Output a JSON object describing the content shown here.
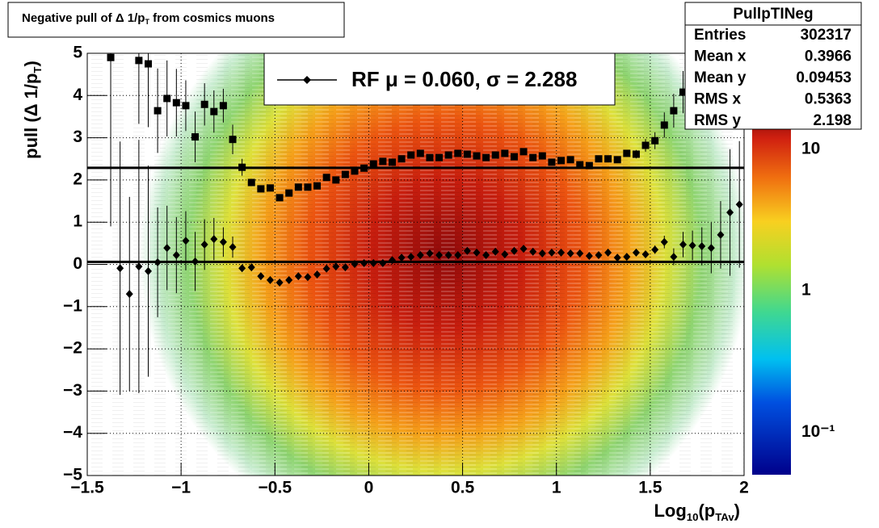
{
  "chart_data": {
    "type": "profile2d",
    "title": [
      "Negative pull of Δ 1/p",
      "T",
      " from cosmics muons"
    ],
    "ylabel": [
      "pull (Δ 1/p",
      "T",
      ")"
    ],
    "xlabel": [
      "Log",
      "10",
      "(p",
      "TAv",
      ")"
    ],
    "xlim": [
      -1.5,
      2
    ],
    "xticks": [
      {
        "value": -1.5,
        "label": "−1.5"
      },
      {
        "value": -1,
        "label": "−1"
      },
      {
        "value": -0.5,
        "label": "−0.5"
      },
      0,
      0.5,
      1,
      1.5,
      2
    ],
    "ylim": [
      -5,
      5
    ],
    "yticks": [
      {
        "value": -5,
        "label": "−5"
      },
      {
        "value": -4,
        "label": "−4"
      },
      {
        "value": -3,
        "label": "−3"
      },
      {
        "value": -2,
        "label": "−2"
      },
      {
        "value": -1,
        "label": "−1"
      },
      0,
      1,
      2,
      3,
      4,
      5
    ],
    "grid": true,
    "zlim": [
      0.05,
      18
    ],
    "zlog": true,
    "zticks": [
      {
        "value": 0.1,
        "label": "10⁻¹"
      },
      1,
      10
    ],
    "series": [
      {
        "name": "RF μ =  0.060, σ =   2.288",
        "marker": "diamond",
        "color": "#000000",
        "x": [
          -1.325,
          -1.275,
          -1.225,
          -1.175,
          -1.125,
          -1.075,
          -1.025,
          -0.975,
          -0.925,
          -0.875,
          -0.825,
          -0.775,
          -0.725,
          -0.675,
          -0.625,
          -0.575,
          -0.525,
          -0.475,
          -0.425,
          -0.375,
          -0.325,
          -0.275,
          -0.225,
          -0.175,
          -0.125,
          -0.075,
          -0.025,
          0.025,
          0.075,
          0.125,
          0.175,
          0.225,
          0.275,
          0.325,
          0.375,
          0.425,
          0.475,
          0.525,
          0.575,
          0.625,
          0.675,
          0.725,
          0.775,
          0.825,
          0.875,
          0.925,
          0.975,
          1.025,
          1.075,
          1.125,
          1.175,
          1.225,
          1.275,
          1.325,
          1.375,
          1.425,
          1.475,
          1.525,
          1.575,
          1.625,
          1.675,
          1.725,
          1.775,
          1.825,
          1.875,
          1.925,
          1.975
        ],
        "values": [
          -0.09,
          -0.7,
          -0.05,
          -0.16,
          0.05,
          0.39,
          0.22,
          0.56,
          0.07,
          0.47,
          0.6,
          0.53,
          0.41,
          -0.09,
          -0.07,
          -0.28,
          -0.37,
          -0.43,
          -0.37,
          -0.28,
          -0.3,
          -0.24,
          -0.1,
          -0.05,
          -0.07,
          0.01,
          0.03,
          0.03,
          0.03,
          0.1,
          0.16,
          0.18,
          0.22,
          0.26,
          0.22,
          0.22,
          0.22,
          0.32,
          0.28,
          0.22,
          0.3,
          0.24,
          0.32,
          0.37,
          0.3,
          0.26,
          0.28,
          0.28,
          0.26,
          0.26,
          0.2,
          0.22,
          0.28,
          0.16,
          0.18,
          0.28,
          0.24,
          0.35,
          0.53,
          0.18,
          0.47,
          0.45,
          0.43,
          0.39,
          0.7,
          1.23,
          1.42
        ],
        "errors": [
          3,
          2.3,
          3,
          2.5,
          1.3,
          1.0,
          0.9,
          0.7,
          0.7,
          0.6,
          0.5,
          0.35,
          0.25,
          0.08,
          0.06,
          0.05,
          0.03,
          0.03,
          0.03,
          0.03,
          0.03,
          0.03,
          0.03,
          0.03,
          0.03,
          0.03,
          0.03,
          0.03,
          0.03,
          0.03,
          0.03,
          0.03,
          0.03,
          0.03,
          0.03,
          0.03,
          0.03,
          0.03,
          0.03,
          0.03,
          0.03,
          0.03,
          0.03,
          0.03,
          0.03,
          0.03,
          0.03,
          0.03,
          0.03,
          0.03,
          0.03,
          0.03,
          0.03,
          0.05,
          0.05,
          0.06,
          0.07,
          0.1,
          0.15,
          0.2,
          0.3,
          0.35,
          0.45,
          0.6,
          0.8,
          1.5,
          1.5
        ]
      },
      {
        "marker": "square",
        "color": "#000000",
        "x": [
          -1.375,
          -1.225,
          -1.175,
          -1.125,
          -1.075,
          -1.025,
          -0.975,
          -0.925,
          -0.875,
          -0.825,
          -0.775,
          -0.725,
          -0.675,
          -0.625,
          -0.575,
          -0.525,
          -0.475,
          -0.425,
          -0.375,
          -0.325,
          -0.275,
          -0.225,
          -0.175,
          -0.125,
          -0.075,
          -0.025,
          0.025,
          0.075,
          0.125,
          0.175,
          0.225,
          0.275,
          0.325,
          0.375,
          0.425,
          0.475,
          0.525,
          0.575,
          0.625,
          0.675,
          0.725,
          0.775,
          0.825,
          0.875,
          0.925,
          0.975,
          1.025,
          1.075,
          1.125,
          1.175,
          1.225,
          1.275,
          1.325,
          1.375,
          1.425,
          1.475,
          1.525,
          1.575,
          1.625,
          1.675,
          1.725
        ],
        "values": [
          4.9,
          4.83,
          4.75,
          3.64,
          3.93,
          3.83,
          3.76,
          3.02,
          3.79,
          3.62,
          3.76,
          2.96,
          2.3,
          1.94,
          1.79,
          1.81,
          1.58,
          1.69,
          1.83,
          1.83,
          1.86,
          2.06,
          2.0,
          2.13,
          2.21,
          2.28,
          2.38,
          2.44,
          2.42,
          2.5,
          2.59,
          2.63,
          2.53,
          2.53,
          2.59,
          2.63,
          2.61,
          2.57,
          2.53,
          2.59,
          2.63,
          2.55,
          2.67,
          2.53,
          2.57,
          2.42,
          2.46,
          2.48,
          2.36,
          2.34,
          2.5,
          2.5,
          2.48,
          2.63,
          2.61,
          2.82,
          2.93,
          3.3,
          3.64,
          4.08,
          4.35
        ],
        "errors": [
          4,
          1.5,
          1.5,
          1.0,
          0.9,
          0.8,
          0.6,
          0.6,
          0.5,
          0.5,
          0.4,
          0.35,
          0.2,
          0.06,
          0.05,
          0.04,
          0.03,
          0.03,
          0.03,
          0.03,
          0.03,
          0.03,
          0.03,
          0.03,
          0.03,
          0.03,
          0.03,
          0.03,
          0.03,
          0.03,
          0.03,
          0.03,
          0.03,
          0.03,
          0.03,
          0.03,
          0.03,
          0.03,
          0.03,
          0.03,
          0.03,
          0.03,
          0.03,
          0.03,
          0.03,
          0.03,
          0.03,
          0.03,
          0.03,
          0.04,
          0.05,
          0.05,
          0.06,
          0.08,
          0.1,
          0.15,
          0.2,
          0.3,
          0.4,
          0.5,
          0.6
        ]
      }
    ],
    "hlines": [
      0.06,
      2.288
    ],
    "stats": {
      "title": "PullpTINeg",
      "rows": [
        [
          "Entries",
          302317
        ],
        [
          "Mean x",
          0.3966
        ],
        [
          "Mean y",
          0.09453
        ],
        [
          "RMS x",
          0.5363
        ],
        [
          "RMS y",
          2.198
        ]
      ]
    }
  }
}
